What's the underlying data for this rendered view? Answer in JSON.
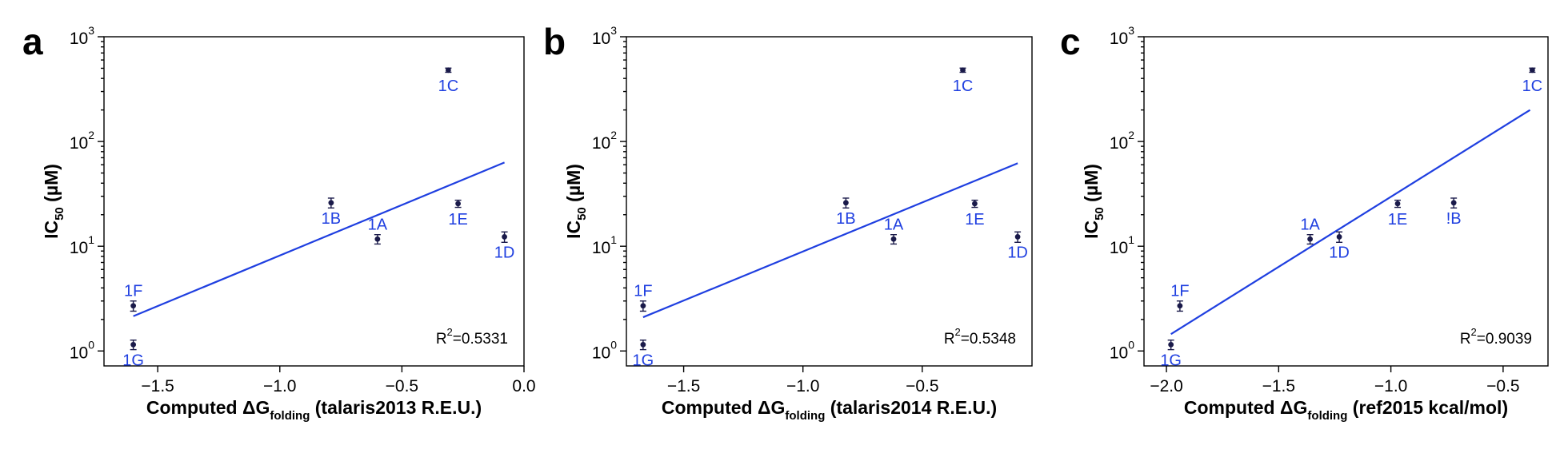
{
  "colors": {
    "fit_line": "#1f3fe0",
    "point": "#1a1a4a",
    "label": "#1f3fe0",
    "axis": "#000000"
  },
  "chart_data": [
    {
      "type": "scatter",
      "panel_letter": "a",
      "xlabel": {
        "prefix": "Computed ΔG",
        "sub": "folding",
        "suffix": " (talaris2013 R.E.U.)"
      },
      "ylabel": {
        "prefix": "IC",
        "sub": "50",
        "suffix": " (µM)"
      },
      "xlim": [
        -1.72,
        0.0
      ],
      "ylim": [
        0.72,
        1000
      ],
      "yscale": "log",
      "xticks": [
        -1.5,
        -1.0,
        -0.5,
        0.0
      ],
      "xtick_labels": [
        "−1.5",
        "−1.0",
        "−0.5",
        "0.0"
      ],
      "yticks": [
        {
          "v": 1,
          "base": "10",
          "exp": "0"
        },
        {
          "v": 10,
          "base": "10",
          "exp": "1"
        },
        {
          "v": 100,
          "base": "10",
          "exp": "2"
        },
        {
          "v": 1000,
          "base": "10",
          "exp": "3"
        }
      ],
      "points": [
        {
          "label": "1C",
          "x": -0.31,
          "y": 480,
          "err": 22,
          "label_pos": "below"
        },
        {
          "label": "1B",
          "x": -0.79,
          "y": 26,
          "err": 2.8,
          "label_pos": "below"
        },
        {
          "label": "1A",
          "x": -0.6,
          "y": 11.7,
          "err": 1.2,
          "label_pos": "above"
        },
        {
          "label": "1E",
          "x": -0.27,
          "y": 25.5,
          "err": 2,
          "label_pos": "below"
        },
        {
          "label": "1D",
          "x": -0.08,
          "y": 12.3,
          "err": 1.4,
          "label_pos": "below"
        },
        {
          "label": "1F",
          "x": -1.6,
          "y": 2.7,
          "err": 0.3,
          "label_pos": "above"
        },
        {
          "label": "1G",
          "x": -1.6,
          "y": 1.15,
          "err": 0.12,
          "label_pos": "below"
        }
      ],
      "fit": {
        "x": [
          -1.6,
          -0.08
        ],
        "y": [
          2.15,
          63
        ]
      },
      "r2": {
        "prefix": "R",
        "exp": "2",
        "value": "=0.5331"
      }
    },
    {
      "type": "scatter",
      "panel_letter": "b",
      "xlabel": {
        "prefix": "Computed ΔG",
        "sub": "folding",
        "suffix": " (talaris2014 R.E.U.)"
      },
      "ylabel": {
        "prefix": "IC",
        "sub": "50",
        "suffix": " (µM)"
      },
      "xlim": [
        -1.74,
        -0.04
      ],
      "ylim": [
        0.72,
        1000
      ],
      "yscale": "log",
      "xticks": [
        -1.5,
        -1.0,
        -0.5
      ],
      "xtick_labels": [
        "−1.5",
        "−1.0",
        "−0.5"
      ],
      "yticks": [
        {
          "v": 1,
          "base": "10",
          "exp": "0"
        },
        {
          "v": 10,
          "base": "10",
          "exp": "1"
        },
        {
          "v": 100,
          "base": "10",
          "exp": "2"
        },
        {
          "v": 1000,
          "base": "10",
          "exp": "3"
        }
      ],
      "points": [
        {
          "label": "1C",
          "x": -0.33,
          "y": 480,
          "err": 22,
          "label_pos": "below"
        },
        {
          "label": "1B",
          "x": -0.82,
          "y": 26,
          "err": 2.8,
          "label_pos": "below"
        },
        {
          "label": "1A",
          "x": -0.62,
          "y": 11.7,
          "err": 1.2,
          "label_pos": "above"
        },
        {
          "label": "1E",
          "x": -0.28,
          "y": 25.5,
          "err": 2,
          "label_pos": "below"
        },
        {
          "label": "1D",
          "x": -0.1,
          "y": 12.3,
          "err": 1.4,
          "label_pos": "below"
        },
        {
          "label": "1F",
          "x": -1.67,
          "y": 2.7,
          "err": 0.3,
          "label_pos": "above"
        },
        {
          "label": "1G",
          "x": -1.67,
          "y": 1.15,
          "err": 0.12,
          "label_pos": "below"
        }
      ],
      "fit": {
        "x": [
          -1.67,
          -0.1
        ],
        "y": [
          2.1,
          62
        ]
      },
      "r2": {
        "prefix": "R",
        "exp": "2",
        "value": "=0.5348"
      }
    },
    {
      "type": "scatter",
      "panel_letter": "c",
      "xlabel": {
        "prefix": "Computed ΔG",
        "sub": "folding",
        "suffix": " (ref2015 kcal/mol)"
      },
      "ylabel": {
        "prefix": "IC",
        "sub": "50",
        "suffix": " (µM)"
      },
      "xlim": [
        -2.1,
        -0.3
      ],
      "ylim": [
        0.72,
        1000
      ],
      "yscale": "log",
      "xticks": [
        -2.0,
        -1.5,
        -1.0,
        -0.5
      ],
      "xtick_labels": [
        "−2.0",
        "−1.5",
        "−1.0",
        "−0.5"
      ],
      "yticks": [
        {
          "v": 1,
          "base": "10",
          "exp": "0"
        },
        {
          "v": 10,
          "base": "10",
          "exp": "1"
        },
        {
          "v": 100,
          "base": "10",
          "exp": "2"
        },
        {
          "v": 1000,
          "base": "10",
          "exp": "3"
        }
      ],
      "points": [
        {
          "label": "1C",
          "x": -0.37,
          "y": 480,
          "err": 22,
          "label_pos": "below"
        },
        {
          "label": "1E",
          "x": -0.97,
          "y": 25.5,
          "err": 2,
          "label_pos": "below"
        },
        {
          "label": "!B",
          "x": -0.72,
          "y": 26,
          "err": 2.8,
          "label_pos": "below"
        },
        {
          "label": "1A",
          "x": -1.36,
          "y": 11.7,
          "err": 1.2,
          "label_pos": "above"
        },
        {
          "label": "1D",
          "x": -1.23,
          "y": 12.3,
          "err": 1.4,
          "label_pos": "below"
        },
        {
          "label": "1F",
          "x": -1.94,
          "y": 2.7,
          "err": 0.3,
          "label_pos": "above"
        },
        {
          "label": "1G",
          "x": -1.98,
          "y": 1.15,
          "err": 0.12,
          "label_pos": "below"
        }
      ],
      "fit": {
        "x": [
          -1.98,
          -0.38
        ],
        "y": [
          1.45,
          200
        ]
      },
      "r2": {
        "prefix": "R",
        "exp": "2",
        "value": "=0.9039"
      }
    }
  ]
}
